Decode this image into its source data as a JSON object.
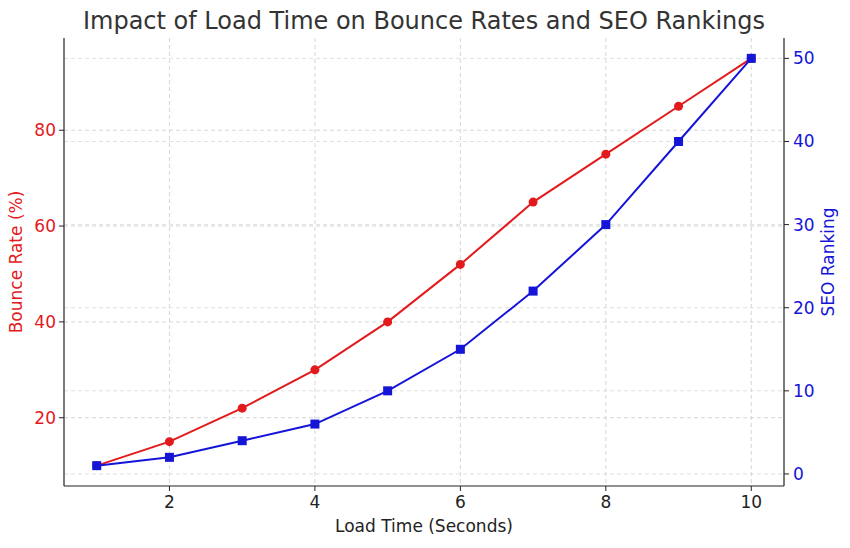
{
  "chart_data": {
    "type": "line",
    "title": "Impact of Load Time on Bounce Rates and SEO Rankings",
    "xlabel": "Load Time (Seconds)",
    "ylabel": "Bounce Rate (%)",
    "y2label": "SEO Ranking",
    "x": [
      1,
      2,
      3,
      4,
      5,
      6,
      7,
      8,
      9,
      10
    ],
    "series": [
      {
        "color": "#e31a1c",
        "marker": "circle",
        "line_style": "solid",
        "axis": "y",
        "values": [
          10,
          15,
          22,
          30,
          40,
          52,
          65,
          75,
          85,
          95
        ]
      },
      {
        "color": "#1515d8",
        "marker": "square",
        "line_style": "solid",
        "axis": "y2",
        "values": [
          1,
          2,
          4,
          6,
          10,
          15,
          22,
          30,
          40,
          50
        ]
      }
    ],
    "xlim": [
      0.55,
      10.45
    ],
    "xticks": [
      2,
      4,
      6,
      8,
      10
    ],
    "ylim": [
      5.75,
      99.25
    ],
    "yticks": [
      20,
      40,
      60,
      80
    ],
    "y2lim": [
      -1.45,
      52.45
    ],
    "y2ticks": [
      0,
      10,
      20,
      30,
      40,
      50
    ],
    "grid": true
  }
}
